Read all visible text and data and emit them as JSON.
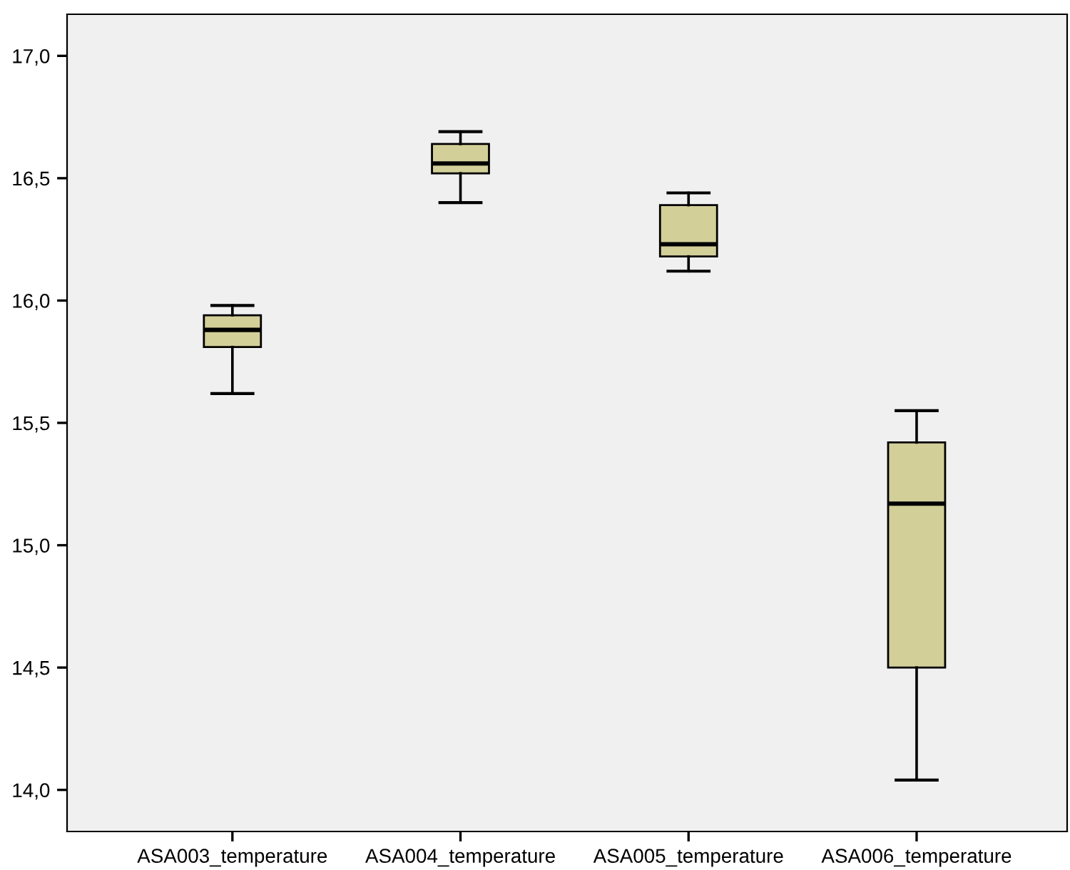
{
  "chart_data": {
    "type": "box",
    "categories": [
      "ASA003_temperature",
      "ASA004_temperature",
      "ASA005_temperature",
      "ASA006_temperature"
    ],
    "boxes": [
      {
        "low": 15.62,
        "q1": 15.81,
        "median": 15.88,
        "q3": 15.94,
        "high": 15.98
      },
      {
        "low": 16.4,
        "q1": 16.52,
        "median": 16.56,
        "q3": 16.64,
        "high": 16.69
      },
      {
        "low": 16.12,
        "q1": 16.18,
        "median": 16.23,
        "q3": 16.39,
        "high": 16.44
      },
      {
        "low": 14.04,
        "q1": 14.5,
        "median": 15.17,
        "q3": 15.42,
        "high": 15.55
      }
    ],
    "color": "#d3cf99",
    "ylim": [
      13.83,
      17.17
    ],
    "yticks": [
      {
        "value": 14.0,
        "label": "14,0"
      },
      {
        "value": 14.5,
        "label": "14,5"
      },
      {
        "value": 15.0,
        "label": "15,0"
      },
      {
        "value": 15.5,
        "label": "15,5"
      },
      {
        "value": 16.0,
        "label": "16,0"
      },
      {
        "value": 16.5,
        "label": "16,5"
      },
      {
        "value": 17.0,
        "label": "17,0"
      }
    ],
    "grid": false,
    "legend": false
  }
}
